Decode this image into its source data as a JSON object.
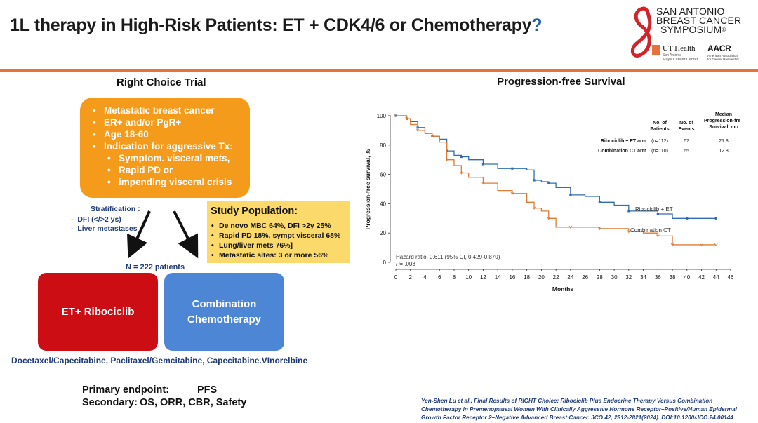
{
  "header": {
    "title": "1L therapy in High-Risk Patients: ET + CDK4/6 or Chemotherapy",
    "title_mark": "?",
    "logo": {
      "line1": "SAN ANTONIO",
      "line2": "BREAST CANCER",
      "line3": "SYMPOSIUM",
      "reg": "®",
      "ut_health": "UT Health",
      "ut_sub1": "San Antonio",
      "ut_sub2": "Mays Cancer Center",
      "aacr": "AACR",
      "aacr_sub1": "American Association",
      "aacr_sub2": "for Cancer Research®"
    }
  },
  "trial": {
    "heading": "Right Choice Trial",
    "eligibility": [
      "Metastatic breast cancer",
      "ER+ and/or PgR+",
      "Age 18-60",
      "Indication for aggressive Tx:",
      "Symptom. visceral mets,",
      "Rapid PD or",
      "impending visceral crisis"
    ],
    "stratification": {
      "label": "Stratification :",
      "items": [
        "DFI (</>2 ys)",
        "Liver metastases"
      ]
    },
    "n_patients": "N = 222 patients",
    "study_population": {
      "heading": "Study Population:",
      "items": [
        "De novo MBC 64%, DFI >2y 25%",
        "Rapid PD 18%, sympt visceral 68%",
        "Lung/liver mets 76%]",
        "Metastatic sites: 3 or more 56%"
      ]
    },
    "arm_ribociclib": "ET+ Ribociclib",
    "arm_chemo_line1": "Combination",
    "arm_chemo_line2": "Chemotherapy",
    "regimens": "Docetaxel/Capecitabine, Paclitaxel/Gemcitabine, Capecitabine.VInorelbine",
    "primary_label": "Primary endpoint:",
    "primary_value": "PFS",
    "secondary_label": "Secondary:",
    "secondary_value": "OS, ORR, CBR, Safety"
  },
  "citation": "Yen-Shen Lu et al., Final Results of RIGHT Choice: Ribociclib Plus Endocrine Therapy Versus Combination Chemotherapy in Premenopausal Women With Clinically Aggressive Hormone Receptor–Positive/Human Epidermal Growth Factor Receptor 2–Negative Advanced Breast Cancer. JCO 42, 2812-2821(2024). DOI:10.1200/JCO.24.00144",
  "colors": {
    "accent_orange": "#e8703a",
    "eligibility_box": "#f59b1c",
    "population_box": "#fbd96a",
    "ribociclib_arm": "#cc0d14",
    "chemo_arm": "#4e86d6",
    "series_ribociclib": "#2e6db4",
    "series_chemo": "#dd7b35"
  },
  "chart_data": {
    "type": "line",
    "title": "Progression-free Survival",
    "xlabel": "Months",
    "ylabel": "Progression-free survival, %",
    "xlim": [
      0,
      46
    ],
    "ylim": [
      0,
      100
    ],
    "xticks": [
      0,
      2,
      4,
      6,
      8,
      10,
      12,
      14,
      16,
      18,
      20,
      22,
      24,
      26,
      28,
      30,
      32,
      34,
      36,
      38,
      40,
      42,
      44,
      46
    ],
    "yticks": [
      0,
      20,
      40,
      60,
      80,
      100
    ],
    "grid": false,
    "series": [
      {
        "name": "Ribociclib + ET",
        "color": "#2e6db4",
        "x": [
          0,
          1.5,
          2,
          3,
          4,
          5,
          6,
          7,
          8,
          9,
          10,
          12,
          14,
          16,
          18,
          19,
          20,
          21,
          22,
          24,
          26,
          28,
          30,
          32,
          34,
          36,
          38,
          40,
          42,
          44
        ],
        "y": [
          100,
          98,
          96,
          92,
          88,
          86,
          84,
          76,
          73,
          72,
          70,
          67,
          64,
          64,
          63,
          56,
          55,
          54,
          51,
          46,
          45,
          41,
          39,
          35,
          35,
          33,
          30,
          30,
          30,
          30
        ]
      },
      {
        "name": "Combination CT",
        "color": "#dd7b35",
        "x": [
          0,
          1.5,
          2,
          3,
          4,
          5,
          6,
          7,
          8,
          9,
          10,
          12,
          14,
          16,
          18,
          19,
          20,
          21,
          22,
          24,
          26,
          28,
          30,
          32,
          34,
          36,
          37.5,
          38,
          40,
          42,
          44
        ],
        "y": [
          100,
          98,
          94,
          90,
          88,
          86,
          82,
          70,
          66,
          61,
          58,
          54,
          49,
          47,
          41,
          37,
          35,
          30,
          24,
          24,
          24,
          23,
          23,
          21,
          20,
          18,
          18,
          12,
          12,
          12,
          12
        ]
      }
    ],
    "table": {
      "headers": [
        "No. of Patients",
        "No. of Events",
        "Median Progression-free Survival, mo"
      ],
      "rows": [
        {
          "arm": "Ribociclib + ET arm",
          "patients": "(n=112)",
          "events": "67",
          "median": "21.8"
        },
        {
          "arm": "Combination CT arm",
          "patients": "(n=110)",
          "events": "65",
          "median": "12.8"
        }
      ]
    },
    "annotations": {
      "hazard_ratio": "Hazard ratio, 0.611 (95% CI, 0.429-0.870)",
      "p_value_label": "P",
      "p_value": "= .003"
    }
  }
}
